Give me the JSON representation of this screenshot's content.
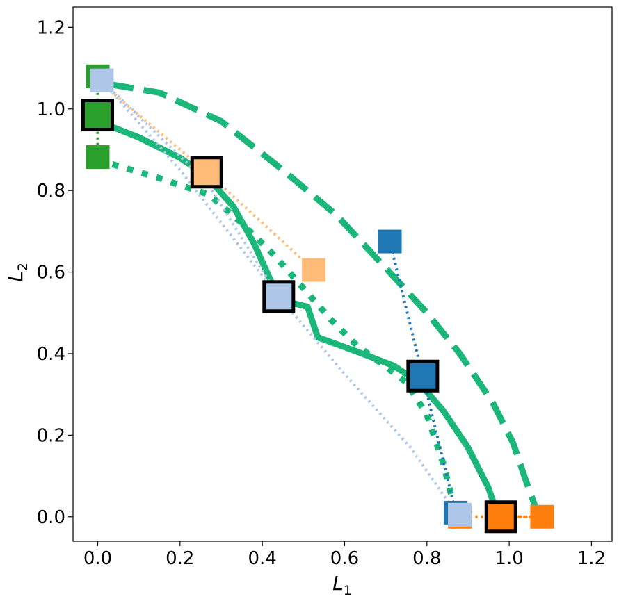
{
  "chart_data": {
    "type": "line",
    "title": "",
    "xlabel": "L",
    "xlabel_sub": "1",
    "ylabel": "L",
    "ylabel_sub": "2",
    "xlim": [
      -0.06,
      1.25
    ],
    "ylim": [
      -0.06,
      1.25
    ],
    "xticks": [
      0.0,
      0.2,
      0.4,
      0.6,
      0.8,
      1.0,
      1.2
    ],
    "yticks": [
      0.0,
      0.2,
      0.4,
      0.6,
      0.8,
      1.0,
      1.2
    ],
    "xtick_labels": [
      "0.0",
      "0.2",
      "0.4",
      "0.6",
      "0.8",
      "1.0",
      "1.2"
    ],
    "ytick_labels": [
      "0.0",
      "0.2",
      "0.4",
      "0.6",
      "0.8",
      "1.0",
      "1.2"
    ],
    "front_color": "#1bb679",
    "fronts": [
      {
        "name": "front-dashed-outer",
        "style": "dashed",
        "points": [
          [
            0.03,
            1.06
          ],
          [
            0.15,
            1.04
          ],
          [
            0.3,
            0.97
          ],
          [
            0.45,
            0.85
          ],
          [
            0.58,
            0.74
          ],
          [
            0.7,
            0.61
          ],
          [
            0.8,
            0.5
          ],
          [
            0.88,
            0.4
          ],
          [
            0.96,
            0.28
          ],
          [
            1.01,
            0.18
          ],
          [
            1.04,
            0.09
          ],
          [
            1.065,
            0.02
          ]
        ]
      },
      {
        "name": "front-dotted-inner",
        "style": "dotted",
        "points": [
          [
            0.0,
            0.875
          ],
          [
            0.15,
            0.83
          ],
          [
            0.27,
            0.79
          ],
          [
            0.35,
            0.72
          ],
          [
            0.43,
            0.64
          ],
          [
            0.5,
            0.56
          ],
          [
            0.57,
            0.48
          ],
          [
            0.63,
            0.42
          ],
          [
            0.75,
            0.33
          ],
          [
            0.8,
            0.25
          ],
          [
            0.84,
            0.13
          ],
          [
            0.86,
            0.05
          ],
          [
            0.87,
            0.01
          ]
        ]
      },
      {
        "name": "front-solid-middle",
        "style": "solid",
        "points": [
          [
            0.0,
            0.97
          ],
          [
            0.1,
            0.93
          ],
          [
            0.2,
            0.88
          ],
          [
            0.26,
            0.84
          ],
          [
            0.33,
            0.76
          ],
          [
            0.38,
            0.67
          ],
          [
            0.42,
            0.58
          ],
          [
            0.45,
            0.53
          ],
          [
            0.51,
            0.515
          ],
          [
            0.535,
            0.44
          ],
          [
            0.63,
            0.405
          ],
          [
            0.72,
            0.37
          ],
          [
            0.78,
            0.33
          ],
          [
            0.84,
            0.26
          ],
          [
            0.9,
            0.17
          ],
          [
            0.95,
            0.07
          ],
          [
            0.97,
            0.01
          ]
        ]
      }
    ],
    "series": [
      {
        "name": "tab-blue",
        "color": "#1f77b4",
        "line": [
          [
            0.71,
            0.675
          ],
          [
            0.79,
            0.345
          ],
          [
            0.87,
            0.01
          ]
        ],
        "points": [
          [
            0.71,
            0.675
          ],
          [
            0.87,
            0.01
          ]
        ],
        "highlight": [
          0.79,
          0.345
        ]
      },
      {
        "name": "tab-orange",
        "color": "#ff7f0e",
        "line": [
          [
            0.98,
            0.0
          ],
          [
            1.08,
            0.0
          ],
          [
            0.88,
            0.0
          ]
        ],
        "points": [
          [
            1.08,
            0.0
          ],
          [
            0.88,
            0.0
          ]
        ],
        "highlight": [
          0.98,
          0.0
        ]
      },
      {
        "name": "tab-green",
        "color": "#2ca02c",
        "line": [
          [
            0.0,
            1.08
          ],
          [
            0.0,
            0.985
          ],
          [
            0.0,
            0.882
          ]
        ],
        "points": [
          [
            0.0,
            1.08
          ],
          [
            0.0,
            0.882
          ]
        ],
        "highlight": [
          0.0,
          0.985
        ]
      },
      {
        "name": "tab-light-orange",
        "color": "#ffbb78",
        "line": [
          [
            0.0,
            1.07
          ],
          [
            0.265,
            0.845
          ],
          [
            0.525,
            0.605
          ]
        ],
        "points": [
          [
            0.525,
            0.605
          ]
        ],
        "highlight": [
          0.265,
          0.845
        ]
      },
      {
        "name": "tab-light-blue",
        "color": "#aec7e8",
        "line_a": [
          [
            0.01,
            1.07
          ],
          [
            0.265,
            0.82
          ],
          [
            0.44,
            0.54
          ]
        ],
        "line_b": [
          [
            0.01,
            1.07
          ],
          [
            0.2,
            0.85
          ],
          [
            0.44,
            0.54
          ],
          [
            0.6,
            0.35
          ],
          [
            0.76,
            0.17
          ],
          [
            0.87,
            0.01
          ]
        ],
        "points": [
          [
            0.01,
            1.07
          ],
          [
            0.88,
            0.005
          ]
        ],
        "highlight": [
          0.44,
          0.54
        ]
      }
    ]
  }
}
